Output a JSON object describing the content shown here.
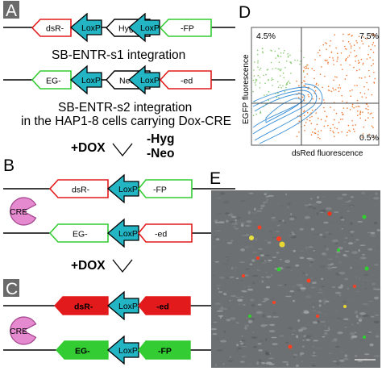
{
  "panels": {
    "a": "A",
    "b": "B",
    "c": "C",
    "d": "D",
    "e": "E"
  },
  "panel_a": {
    "construct1": {
      "left": "dsR-",
      "loxp1": "LoxP",
      "middle": "HygR",
      "loxp2": "LoxP",
      "right": "-FP"
    },
    "caption1": "SB-ENTR-s1 integration",
    "construct2": {
      "left": "EG-",
      "loxp1": "LoxP",
      "middle": "NeoR",
      "loxp2": "LoxP",
      "right": "-ed"
    },
    "caption2_line1": "SB-ENTR-s2 integration",
    "caption2_line2": "in the HAP1-8 cells carrying Dox-CRE"
  },
  "step1": {
    "dox": "+DOX",
    "hyg": "-Hyg",
    "neo": "-Neo"
  },
  "panel_b": {
    "construct1": {
      "left": "dsR-",
      "loxp": "LoxP",
      "right": "-FP"
    },
    "cre": "CRE",
    "construct2": {
      "left": "EG-",
      "loxp": "LoxP",
      "right": "-ed"
    }
  },
  "step2": {
    "dox": "+DOX"
  },
  "panel_c": {
    "construct1": {
      "left": "dsR-",
      "loxp": "LoxP",
      "right": "-ed"
    },
    "cre": "CRE",
    "construct2": {
      "left": "EG-",
      "loxp": "LoxP",
      "right": "-FP"
    }
  },
  "panel_d": {
    "ylabel": "EGFP fluorescence",
    "xlabel": "dsRed fluorescence",
    "q_upper_left": "4.5%",
    "q_upper_right": "7.5%",
    "q_lower_right": "0.5%"
  },
  "colors": {
    "loxp": "#23b5c4",
    "red": "#e31a1c",
    "green": "#33cc33",
    "cre": "#e68ad0",
    "contour": "#3a8fd6",
    "dot_green": "#88c870",
    "dot_orange": "#f07830"
  }
}
